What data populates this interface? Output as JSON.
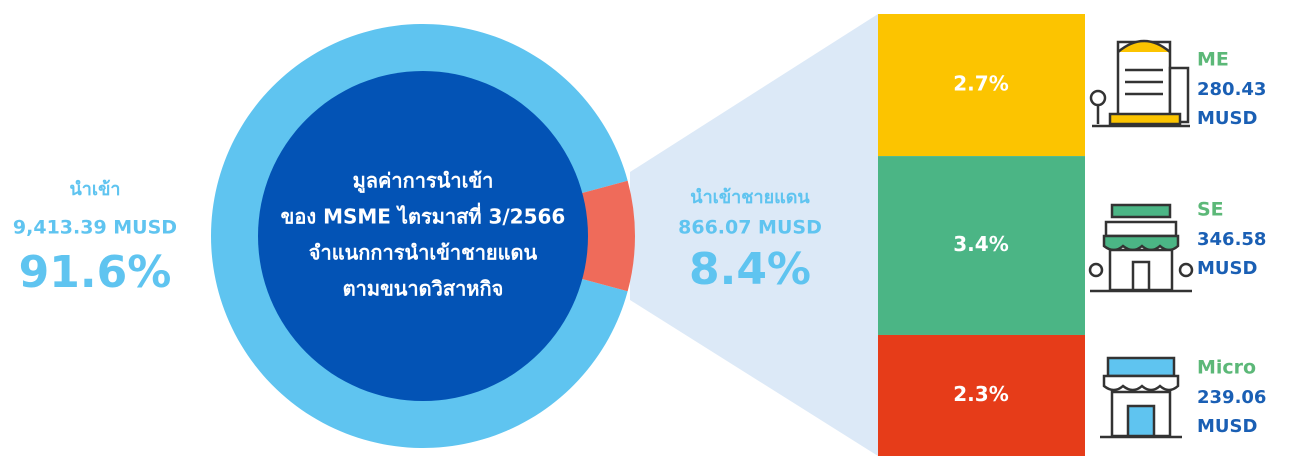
{
  "chart_data": {
    "type": "pie",
    "categories": [
      "นำเข้า",
      "นำเข้าชายแดน"
    ],
    "values": [
      91.6,
      8.4
    ],
    "value_labels": [
      "91.6%",
      "8.4%"
    ],
    "amount_labels": [
      "9,413.39 MUSD",
      "866.07 MUSD"
    ],
    "colors": [
      "#5fc4f0",
      "#ef6b5a"
    ],
    "center_text": [
      "มูลค่าการนำเข้า",
      "ของ MSME ไตรมาสที่ 3/2566",
      "จำแนกการนำเข้าชายแดน",
      "ตามขนาดวิสาหกิจ"
    ],
    "breakdown": {
      "type": "stacked-bar",
      "categories": [
        "ME",
        "SE",
        "Micro"
      ],
      "values": [
        2.7,
        3.4,
        2.3
      ],
      "value_labels": [
        "2.7%",
        "3.4%",
        "2.3%"
      ],
      "amounts": [
        280.43,
        346.58,
        239.06
      ],
      "units": [
        "MUSD",
        "MUSD",
        "MUSD"
      ],
      "colors": [
        "#fcc400",
        "#4bb585",
        "#e63c19"
      ]
    }
  }
}
